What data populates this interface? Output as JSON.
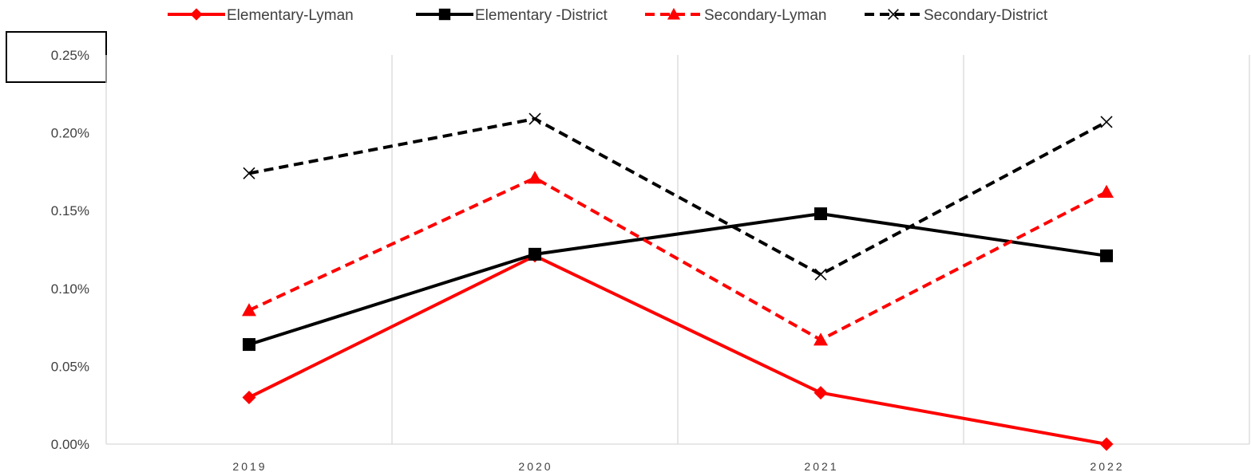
{
  "chart_data": {
    "type": "line",
    "title": "",
    "xlabel": "",
    "ylabel": "",
    "categories": [
      "2019",
      "2020",
      "2021",
      "2022"
    ],
    "ylim": [
      0,
      0.25
    ],
    "yticks": [
      0.0,
      0.05,
      0.1,
      0.15,
      0.2,
      0.25
    ],
    "ytick_labels": [
      "0.00%",
      "0.05%",
      "0.10%",
      "0.15%",
      "0.20%",
      "0.25%"
    ],
    "grid": "vertical",
    "legend_position": "top",
    "series": [
      {
        "name": "Elementary-Lyman",
        "values": [
          0.03,
          0.121,
          0.033,
          0.0
        ],
        "color": "#ff0000",
        "dash": "solid",
        "marker": "diamond"
      },
      {
        "name": "Elementary -District",
        "values": [
          0.064,
          0.122,
          0.148,
          0.121
        ],
        "color": "#000000",
        "dash": "solid",
        "marker": "square"
      },
      {
        "name": "Secondary-Lyman",
        "values": [
          0.086,
          0.171,
          0.067,
          0.162
        ],
        "color": "#ff0000",
        "dash": "dashed",
        "marker": "triangle"
      },
      {
        "name": "Secondary-District",
        "values": [
          0.174,
          0.209,
          0.109,
          0.207
        ],
        "color": "#000000",
        "dash": "dashed",
        "marker": "x"
      }
    ]
  }
}
